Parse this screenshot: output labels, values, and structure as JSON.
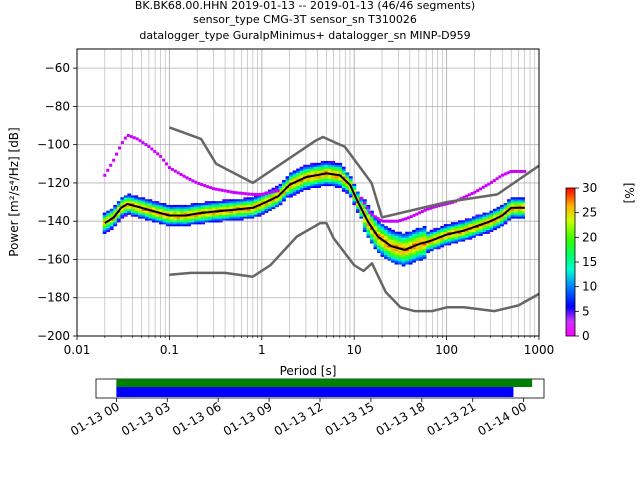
{
  "title": {
    "line1": "BK.BK68.00.HHN   2019-01-13 -- 2019-01-13  (46/46 segments)",
    "line2": "sensor_type CMG-3T sensor_sn T310026",
    "line3": "datalogger_type GuralpMinimus+ datalogger_sn MINP-D959"
  },
  "chart_data": [
    {
      "type": "heatmap",
      "title": "BK.BK68.00.HHN   2019-01-13 -- 2019-01-13  (46/46 segments)",
      "xlabel": "Period [s]",
      "ylabel": "Power [m²/s⁴/Hz] [dB]",
      "xscale": "log",
      "xlim": [
        0.01,
        1000
      ],
      "ylim": [
        -200,
        -50
      ],
      "x_tick_labels": [
        "0.01",
        "0.1",
        "1",
        "10",
        "100",
        "1000"
      ],
      "y_ticks": [
        -200,
        -180,
        -160,
        -140,
        -120,
        -100,
        -80,
        -60
      ],
      "grid": true,
      "colorbar": {
        "label": "[%]",
        "min": 0,
        "max": 30,
        "ticks": [
          0,
          5,
          10,
          15,
          20,
          25,
          30
        ]
      },
      "mean_psd": [
        [
          0.02,
          -141
        ],
        [
          0.025,
          -138
        ],
        [
          0.03,
          -133
        ],
        [
          0.035,
          -131
        ],
        [
          0.05,
          -133
        ],
        [
          0.07,
          -135
        ],
        [
          0.1,
          -137
        ],
        [
          0.15,
          -137
        ],
        [
          0.2,
          -136
        ],
        [
          0.3,
          -135
        ],
        [
          0.5,
          -134
        ],
        [
          0.8,
          -133
        ],
        [
          1.0,
          -131
        ],
        [
          1.5,
          -127
        ],
        [
          2.0,
          -121
        ],
        [
          3.0,
          -117
        ],
        [
          5.0,
          -115
        ],
        [
          7.0,
          -116
        ],
        [
          9.0,
          -121
        ],
        [
          11.0,
          -130
        ],
        [
          14.0,
          -140
        ],
        [
          18.0,
          -148
        ],
        [
          25.0,
          -153
        ],
        [
          35.0,
          -155
        ],
        [
          50.0,
          -152
        ],
        [
          70.0,
          -150
        ],
        [
          100.0,
          -147
        ],
        [
          150.0,
          -145
        ],
        [
          200.0,
          -143
        ],
        [
          300.0,
          -140
        ],
        [
          400.0,
          -137
        ],
        [
          500.0,
          -133
        ],
        [
          700.0,
          -133
        ]
      ],
      "nhnm": [
        [
          0.1,
          -91
        ],
        [
          0.22,
          -97
        ],
        [
          0.32,
          -110
        ],
        [
          0.8,
          -120
        ],
        [
          3.8,
          -98
        ],
        [
          4.6,
          -96
        ],
        [
          6.3,
          -99
        ],
        [
          7.9,
          -101
        ],
        [
          15.4,
          -120
        ],
        [
          20,
          -138
        ],
        [
          100,
          -130
        ],
        [
          354,
          -126
        ],
        [
          1000,
          -111
        ]
      ],
      "nlnm": [
        [
          0.1,
          -168
        ],
        [
          0.17,
          -167
        ],
        [
          0.4,
          -167
        ],
        [
          0.8,
          -169
        ],
        [
          1.24,
          -163
        ],
        [
          2.4,
          -148
        ],
        [
          4.3,
          -141
        ],
        [
          5.0,
          -141
        ],
        [
          6.0,
          -149
        ],
        [
          10,
          -163
        ],
        [
          12.6,
          -166
        ],
        [
          15.6,
          -162
        ],
        [
          21.9,
          -177
        ],
        [
          31.6,
          -185
        ],
        [
          45,
          -187
        ],
        [
          70,
          -187
        ],
        [
          101,
          -185
        ],
        [
          154,
          -185
        ],
        [
          328,
          -187
        ],
        [
          600,
          -184
        ],
        [
          1000,
          -178
        ]
      ],
      "outlier_psd": [
        [
          0.02,
          -116
        ],
        [
          0.025,
          -108
        ],
        [
          0.03,
          -100
        ],
        [
          0.035,
          -95
        ],
        [
          0.045,
          -97
        ],
        [
          0.06,
          -101
        ],
        [
          0.08,
          -106
        ],
        [
          0.1,
          -112
        ],
        [
          0.15,
          -117
        ],
        [
          0.2,
          -120
        ],
        [
          0.3,
          -123
        ],
        [
          0.5,
          -125
        ],
        [
          0.8,
          -126
        ],
        [
          1.0,
          -126
        ],
        [
          1.5,
          -124
        ]
      ],
      "outlier_psd_long_period": [
        [
          10,
          -120
        ],
        [
          12,
          -128
        ],
        [
          15,
          -136
        ],
        [
          20,
          -140
        ],
        [
          30,
          -140
        ],
        [
          40,
          -138
        ],
        [
          60,
          -134
        ],
        [
          80,
          -132
        ],
        [
          120,
          -130
        ],
        [
          200,
          -125
        ],
        [
          300,
          -120
        ],
        [
          400,
          -116
        ],
        [
          500,
          -114
        ],
        [
          700,
          -114
        ]
      ]
    },
    {
      "type": "timeline",
      "tick_labels": [
        "01-13 00",
        "01-13 03",
        "01-13 06",
        "01-13 09",
        "01-13 12",
        "01-13 15",
        "01-13 18",
        "01-13 21",
        "01-14 00"
      ],
      "tick_hours": [
        0,
        3,
        6,
        9,
        12,
        15,
        18,
        21,
        24
      ],
      "xlim_hours": [
        -1.2,
        25.2
      ],
      "bars": [
        {
          "start_hour": 0,
          "end_hour": 24.5,
          "color": "#008000"
        },
        {
          "start_hour": 0,
          "end_hour": 23.4,
          "color": "#0000ff"
        }
      ]
    }
  ]
}
